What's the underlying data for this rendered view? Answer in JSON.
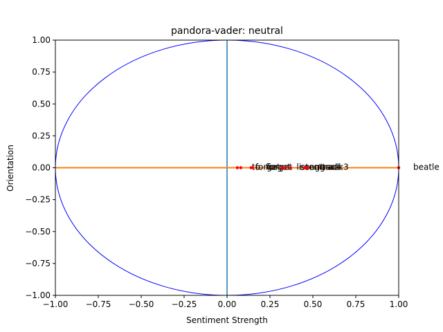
{
  "chart_data": {
    "type": "scatter",
    "title": "pandora-vader: neutral",
    "xlabel": "Sentiment Strength",
    "ylabel": "Orientation",
    "xlim": [
      -1.0,
      1.0
    ],
    "ylim": [
      -1.0,
      1.0
    ],
    "x_ticks": [
      "−1.00",
      "−0.75",
      "−0.50",
      "−0.25",
      "0.00",
      "0.25",
      "0.50",
      "0.75",
      "1.00"
    ],
    "y_ticks": [
      "−1.00",
      "−0.75",
      "−0.50",
      "−0.25",
      "0.00",
      "0.25",
      "0.50",
      "0.75",
      "1.00"
    ],
    "grid": false,
    "unit_circle": {
      "color": "#0000ff"
    },
    "vertical_line": {
      "x": 0.0,
      "color": "#1f77b4"
    },
    "horizontal_line": {
      "y": 0.0,
      "color": "#ff7f0e"
    },
    "point_color": "#ff0000",
    "points": [
      {
        "label": "beatle",
        "x": 1.0,
        "y": 0.0
      },
      {
        "label": "to",
        "x": 0.06,
        "y": 0.0
      },
      {
        "label": "forget",
        "x": 0.08,
        "y": 0.0
      },
      {
        "label": "forget",
        "x": 0.14,
        "y": 0.0
      },
      {
        "label": "forget",
        "x": 0.15,
        "y": 0.0
      },
      {
        "label": "listen",
        "x": 0.32,
        "y": 0.0
      },
      {
        "label": "song",
        "x": 0.34,
        "y": 0.0
      },
      {
        "label": "song",
        "x": 0.37,
        "y": 0.0
      },
      {
        "label": "track",
        "x": 0.45,
        "y": 0.0
      },
      {
        "label": "track",
        "x": 0.46,
        "y": 0.0
      },
      {
        "label": "track3",
        "x": 0.47,
        "y": 0.0
      }
    ]
  }
}
